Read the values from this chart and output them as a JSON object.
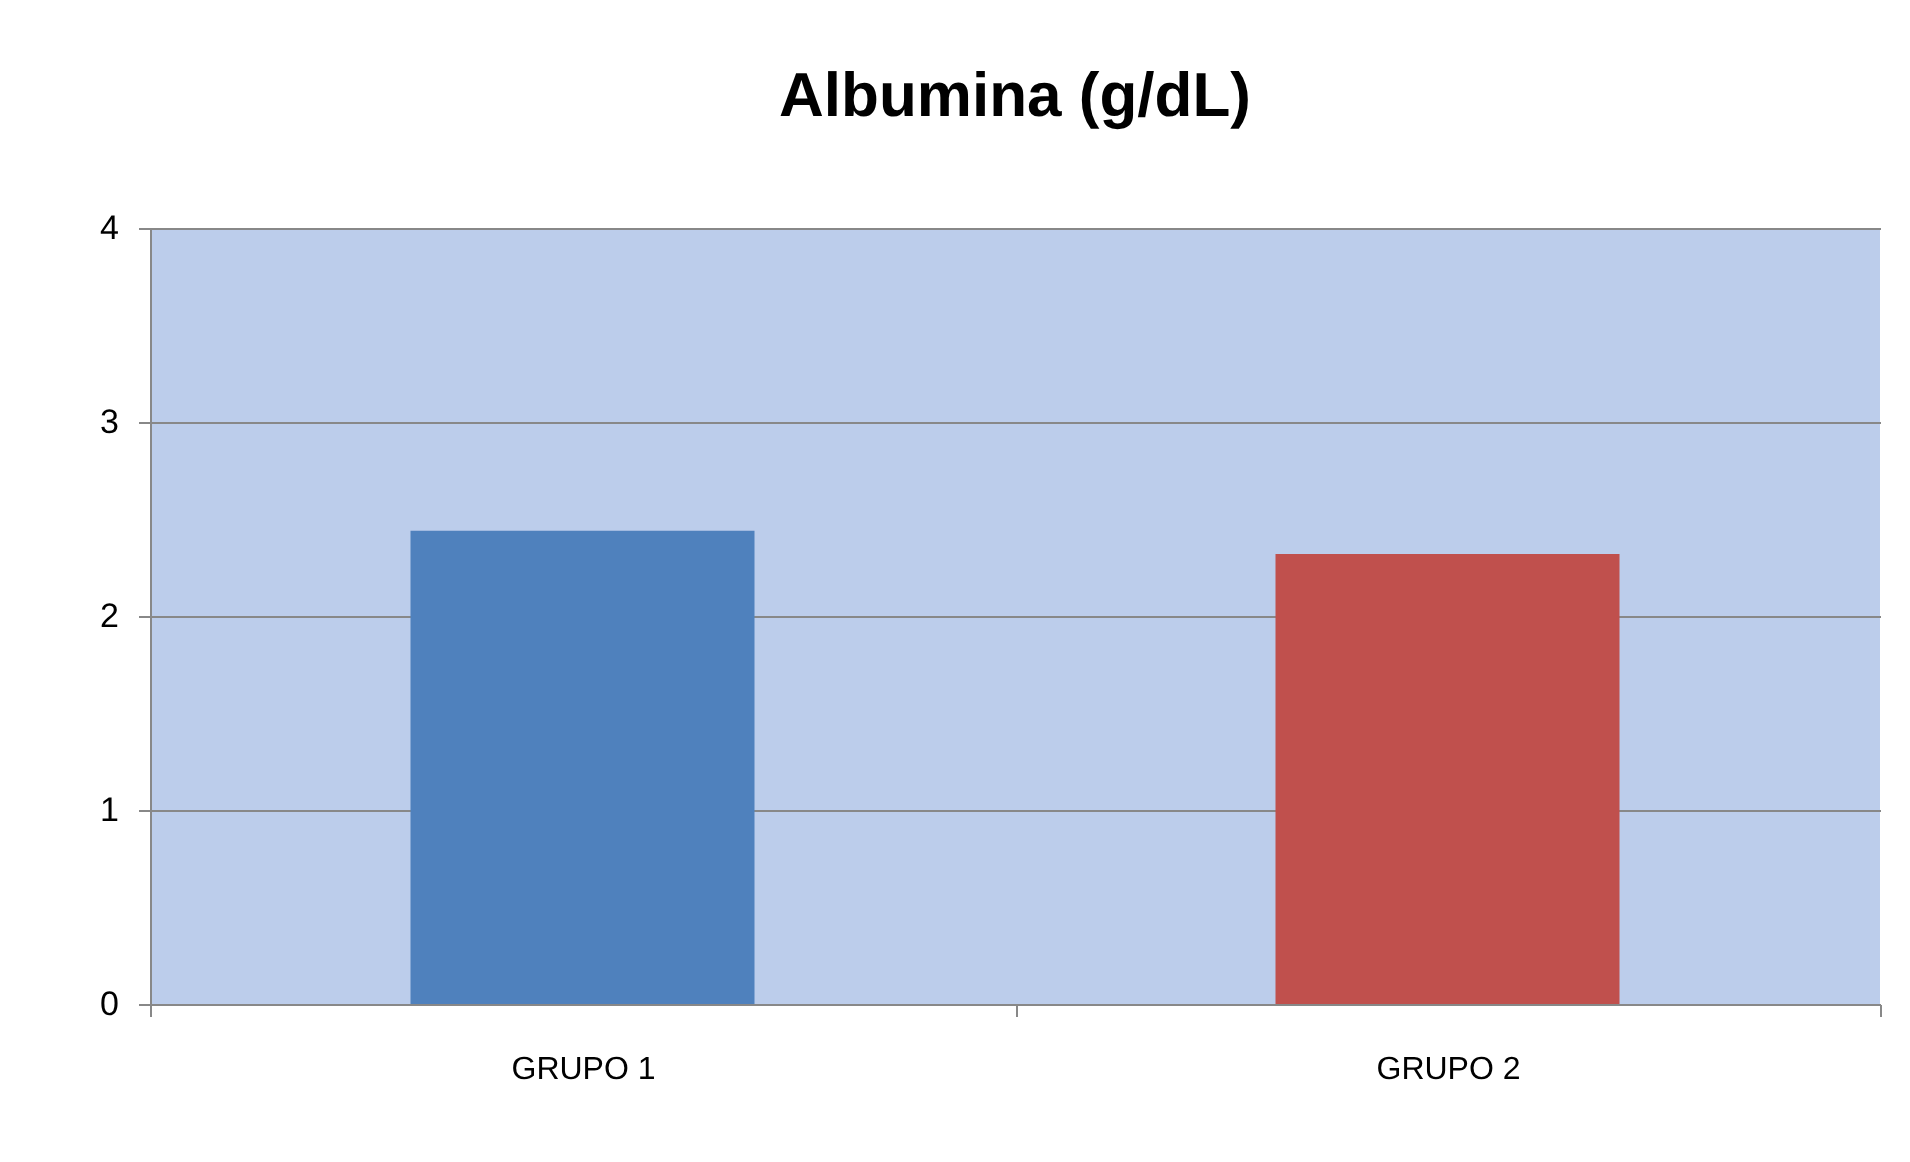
{
  "chart_data": {
    "type": "bar",
    "title": "Albumina (g/dL)",
    "categories": [
      "GRUPO 1",
      "GRUPO 2"
    ],
    "values": [
      2.44,
      2.32
    ],
    "colors": [
      "#4f81bd",
      "#c0504d"
    ],
    "ylim": [
      0,
      4
    ],
    "yticks": [
      0,
      1,
      2,
      3,
      4
    ],
    "grid": "y"
  }
}
